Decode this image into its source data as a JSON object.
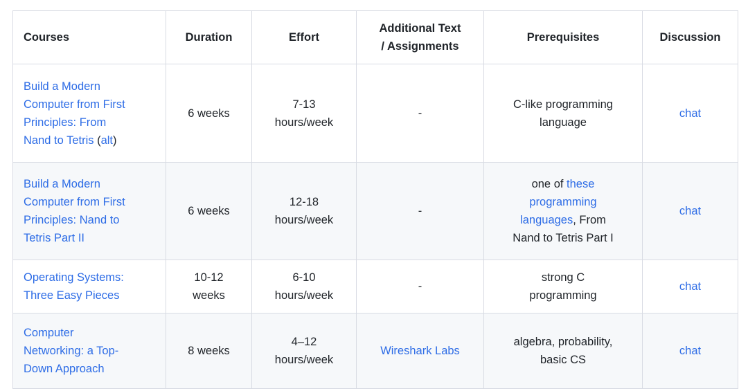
{
  "colors": {
    "text": "#1f2328",
    "link": "#2d6ce6",
    "border": "#d8dbe3",
    "alt_row_background": "#f6f8fa",
    "page_background": "#ffffff"
  },
  "table": {
    "columns": [
      {
        "key": "courses",
        "label": "Courses"
      },
      {
        "key": "duration",
        "label": "Duration"
      },
      {
        "key": "effort",
        "label": "Effort"
      },
      {
        "key": "additional",
        "label": "Additional Text\n/ Assignments"
      },
      {
        "key": "prerequisites",
        "label": "Prerequisites"
      },
      {
        "key": "discussion",
        "label": "Discussion"
      }
    ],
    "rows": [
      {
        "cells": [
          [
            {
              "t": "Build a Modern\nComputer from First\nPrinciples: From\nNand to Tetris",
              "link": true,
              "name": "course-link"
            },
            {
              "t": " (",
              "link": false
            },
            {
              "t": "alt",
              "link": true,
              "name": "alt-course-link"
            },
            {
              "t": ")",
              "link": false
            }
          ],
          [
            {
              "t": "6 weeks",
              "link": false
            }
          ],
          [
            {
              "t": "7-13\nhours/week",
              "link": false
            }
          ],
          [
            {
              "t": "-",
              "link": false
            }
          ],
          [
            {
              "t": "C-like programming\nlanguage",
              "link": false
            }
          ],
          [
            {
              "t": "chat",
              "link": true,
              "name": "chat-link"
            }
          ]
        ]
      },
      {
        "cells": [
          [
            {
              "t": "Build a Modern\nComputer from First\nPrinciples: Nand to\nTetris Part II",
              "link": true,
              "name": "course-link"
            }
          ],
          [
            {
              "t": "6 weeks",
              "link": false
            }
          ],
          [
            {
              "t": "12-18\nhours/week",
              "link": false
            }
          ],
          [
            {
              "t": "-",
              "link": false
            }
          ],
          [
            {
              "t": "one of ",
              "link": false
            },
            {
              "t": "these\nprogramming\nlanguages",
              "link": true,
              "name": "programming-languages-link"
            },
            {
              "t": ", From\nNand to Tetris Part I",
              "link": false
            }
          ],
          [
            {
              "t": "chat",
              "link": true,
              "name": "chat-link"
            }
          ]
        ]
      },
      {
        "cells": [
          [
            {
              "t": "Operating Systems:\nThree Easy Pieces",
              "link": true,
              "name": "course-link"
            }
          ],
          [
            {
              "t": "10-12\nweeks",
              "link": false
            }
          ],
          [
            {
              "t": "6-10\nhours/week",
              "link": false
            }
          ],
          [
            {
              "t": "-",
              "link": false
            }
          ],
          [
            {
              "t": "strong C\nprogramming",
              "link": false
            }
          ],
          [
            {
              "t": "chat",
              "link": true,
              "name": "chat-link"
            }
          ]
        ]
      },
      {
        "cells": [
          [
            {
              "t": "Computer\nNetworking: a Top-\nDown Approach",
              "link": true,
              "name": "course-link"
            }
          ],
          [
            {
              "t": "8 weeks",
              "link": false
            }
          ],
          [
            {
              "t": "4–12\nhours/week",
              "link": false
            }
          ],
          [
            {
              "t": "Wireshark Labs",
              "link": true,
              "name": "wireshark-labs-link"
            }
          ],
          [
            {
              "t": "algebra, probability,\nbasic CS",
              "link": false
            }
          ],
          [
            {
              "t": "chat",
              "link": true,
              "name": "chat-link"
            }
          ]
        ]
      }
    ]
  }
}
